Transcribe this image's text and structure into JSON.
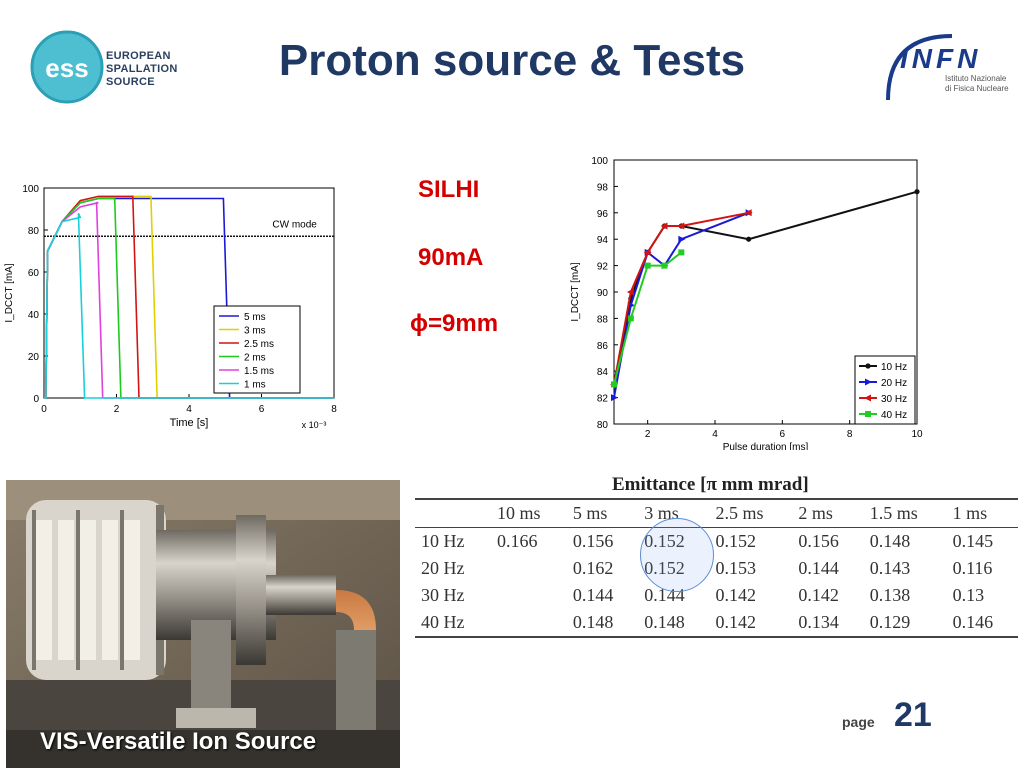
{
  "title": "Proton source & Tests",
  "ess_logo": {
    "mark": "ess",
    "line1": "EUROPEAN",
    "line2": "SPALLATION",
    "line3": "SOURCE"
  },
  "infn_logo": {
    "mark": "INFN",
    "line1": "Istituto Nazionale",
    "line2": "di Fisica Nucleare"
  },
  "labels": {
    "silhi": "SILHI",
    "current": "90mA",
    "phi": "ϕ=9mm"
  },
  "photo": {
    "caption": "VIS-Versatile Ion Source"
  },
  "footer": {
    "page_word": "page",
    "page_number": "21"
  },
  "emittance_table": {
    "title": "Emittance [π mm mrad]",
    "headers": [
      "",
      "10 ms",
      "5 ms",
      "3 ms",
      "2.5 ms",
      "2 ms",
      "1.5 ms",
      "1 ms"
    ],
    "rows": [
      [
        "10 Hz",
        "0.166",
        "0.156",
        "0.152",
        "0.152",
        "0.156",
        "0.148",
        "0.145"
      ],
      [
        "20 Hz",
        "",
        "0.162",
        "0.152",
        "0.153",
        "0.144",
        "0.143",
        "0.116"
      ],
      [
        "30 Hz",
        "",
        "0.144",
        "0.144",
        "0.142",
        "0.142",
        "0.138",
        "0.13"
      ],
      [
        "40 Hz",
        "",
        "0.148",
        "0.148",
        "0.142",
        "0.134",
        "0.129",
        "0.146"
      ]
    ]
  },
  "chart_data": [
    {
      "type": "line",
      "title": "",
      "xlabel": "Time [s]",
      "ylabel": "I_DCCT [mA]",
      "x_multiplier_label": "x 10⁻³",
      "xlim": [
        0,
        8
      ],
      "ylim": [
        0,
        100
      ],
      "xticks": [
        0,
        2,
        4,
        6,
        8
      ],
      "yticks": [
        0,
        20,
        40,
        60,
        80,
        100
      ],
      "annotation": "CW mode",
      "legend_position": "lower-right",
      "series": [
        {
          "name": "5 ms",
          "color": "#1a1ad6",
          "end": 5.0,
          "flat": 95
        },
        {
          "name": "3 ms",
          "color": "#e0d000",
          "end": 3.0,
          "flat": 96
        },
        {
          "name": "2.5 ms",
          "color": "#d21414",
          "end": 2.5,
          "flat": 96
        },
        {
          "name": "2 ms",
          "color": "#1ccc1c",
          "end": 2.0,
          "flat": 95
        },
        {
          "name": "1.5 ms",
          "color": "#e040e0",
          "end": 1.5,
          "flat": 93
        },
        {
          "name": "1 ms",
          "color": "#18d0d8",
          "end": 1.0,
          "flat": 88
        }
      ],
      "cw_series": {
        "name": "CW mode",
        "color": "#111111",
        "value": 77
      }
    },
    {
      "type": "line",
      "title": "",
      "xlabel": "Pulse duration [ms]",
      "ylabel": "I_DCCT [mA]",
      "xlim": [
        1,
        10
      ],
      "ylim": [
        80,
        100
      ],
      "xticks": [
        2,
        4,
        6,
        8,
        10
      ],
      "yticks": [
        80,
        82,
        84,
        86,
        88,
        90,
        92,
        94,
        96,
        98,
        100
      ],
      "legend_position": "lower-right",
      "series": [
        {
          "name": "10 Hz",
          "color": "#111111",
          "marker": "dot",
          "x": [
            1,
            1.5,
            2,
            2.5,
            3,
            5,
            10
          ],
          "y": [
            83,
            89.5,
            93,
            95,
            95,
            94,
            97.6
          ]
        },
        {
          "name": "20 Hz",
          "color": "#1a1ad6",
          "marker": "tri-right",
          "x": [
            1,
            1.5,
            2,
            2.5,
            3,
            5
          ],
          "y": [
            82,
            89,
            93,
            92,
            94,
            96
          ]
        },
        {
          "name": "30 Hz",
          "color": "#d21414",
          "marker": "tri-left",
          "x": [
            1,
            1.5,
            2,
            2.5,
            3,
            5
          ],
          "y": [
            83,
            90,
            93,
            95,
            95,
            96
          ]
        },
        {
          "name": "40 Hz",
          "color": "#22cc22",
          "marker": "square",
          "x": [
            1,
            1.5,
            2,
            2.5,
            3
          ],
          "y": [
            83,
            88,
            92,
            92,
            93
          ]
        }
      ]
    }
  ]
}
